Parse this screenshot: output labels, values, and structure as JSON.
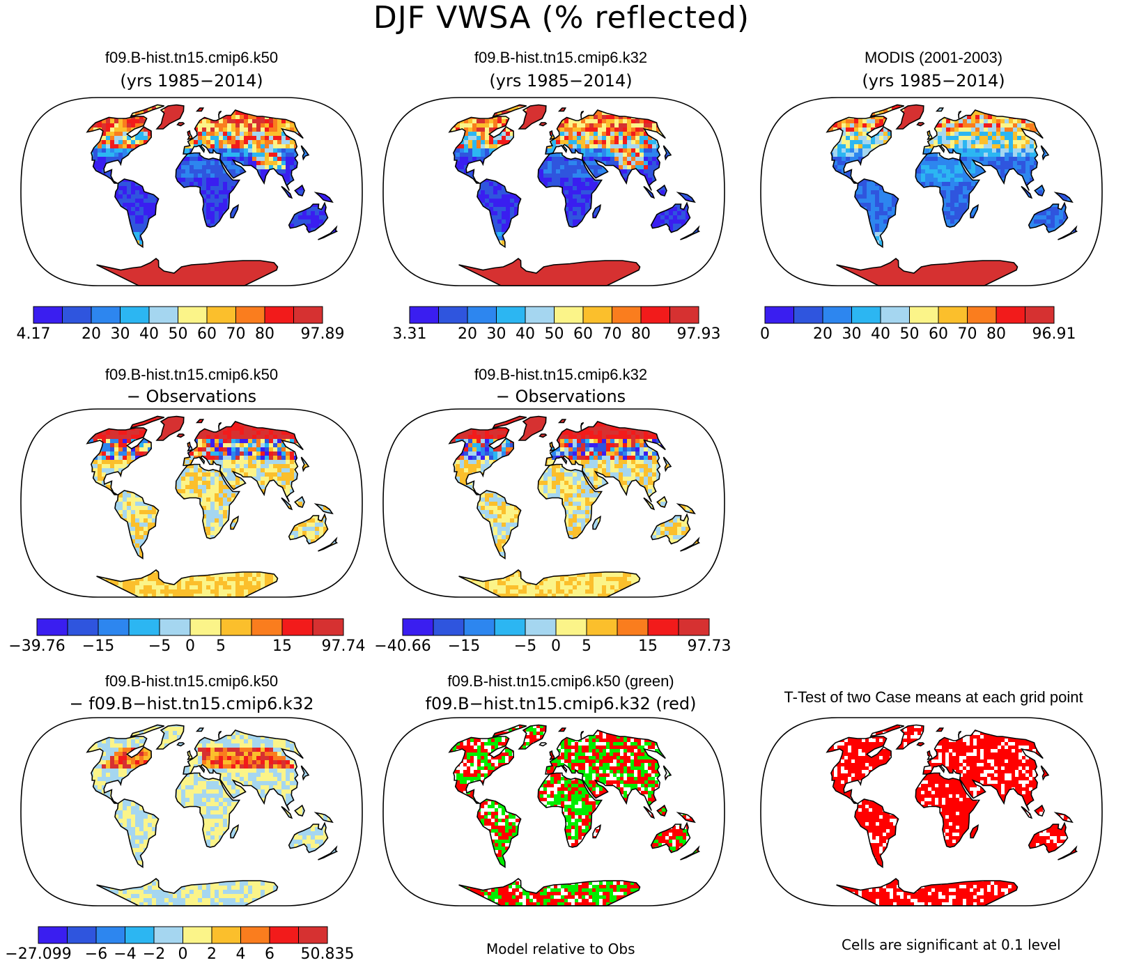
{
  "title": "DJF VWSA (% reflected)",
  "panels": [
    {
      "id": "p11",
      "title": "f09.B-hist.tn15.cmip6.k50",
      "subtitle": "(yrs 1985−2014)",
      "style": "abs"
    },
    {
      "id": "p12",
      "title": "f09.B-hist.tn15.cmip6.k32",
      "subtitle": "(yrs 1985−2014)",
      "style": "abs"
    },
    {
      "id": "p13",
      "title": "MODIS (2001-2003)",
      "subtitle": "(yrs 1985−2014)",
      "style": "obs"
    },
    {
      "id": "p21",
      "title": "f09.B-hist.tn15.cmip6.k50",
      "subtitle": "− Observations",
      "style": "diff"
    },
    {
      "id": "p22",
      "title": "f09.B-hist.tn15.cmip6.k32",
      "subtitle": "− Observations",
      "style": "diff"
    },
    {
      "id": "p31",
      "title": "f09.B-hist.tn15.cmip6.k50",
      "subtitle": "− f09.B−hist.tn15.cmip6.k32",
      "style": "casediff"
    },
    {
      "id": "p32",
      "title": "f09.B-hist.tn15.cmip6.k50 (green)",
      "subtitle": "f09.B−hist.tn15.cmip6.k32 (red)",
      "style": "greenred"
    },
    {
      "id": "p33",
      "title": "T-Test of two Case means at each grid point",
      "subtitle": "",
      "style": "ttest"
    }
  ],
  "colorbars": [
    {
      "id": "cb1",
      "labels": [
        "4.17",
        "20",
        "30",
        "40",
        "50",
        "60",
        "70",
        "80",
        "97.89"
      ]
    },
    {
      "id": "cb2",
      "labels": [
        "3.31",
        "20",
        "30",
        "40",
        "50",
        "60",
        "70",
        "80",
        "97.93"
      ]
    },
    {
      "id": "cb3",
      "labels": [
        "0",
        "20",
        "30",
        "40",
        "50",
        "60",
        "70",
        "80",
        "96.91"
      ]
    },
    {
      "id": "cb4",
      "labels": [
        "−39.76",
        "−15",
        "−5",
        "0",
        "5",
        "15",
        "97.74"
      ]
    },
    {
      "id": "cb5",
      "labels": [
        "−40.66",
        "−15",
        "−5",
        "0",
        "5",
        "15",
        "97.73"
      ]
    },
    {
      "id": "cb6",
      "labels": [
        "−27.099",
        "−6",
        "−4",
        "−2",
        "0",
        "2",
        "4",
        "6",
        "50.835"
      ]
    }
  ],
  "palette": [
    "#3a1ef0",
    "#2f55de",
    "#2d86ef",
    "#2cb6f2",
    "#a5d6f0",
    "#fbf489",
    "#fbbf2c",
    "#fa7d1e",
    "#f21b1b",
    "#d63131"
  ],
  "notes": {
    "model_relative": "Model relative to Obs",
    "significance": "Cells are significant at 0.1 level"
  }
}
